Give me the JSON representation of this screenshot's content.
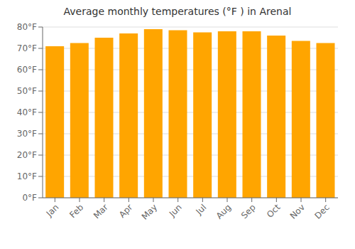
{
  "chart_data": {
    "type": "bar",
    "title": "Average monthly temperatures (°F ) in Arenal",
    "categories": [
      "Jan",
      "Feb",
      "Mar",
      "Apr",
      "May",
      "Jun",
      "Jul",
      "Aug",
      "Sep",
      "Oct",
      "Nov",
      "Dec"
    ],
    "values": [
      71,
      72.5,
      75,
      77,
      79,
      78.5,
      77.5,
      78,
      78,
      76,
      73.5,
      72.5
    ],
    "color": "#FFA500",
    "ylim": [
      0,
      80
    ],
    "yticks": [
      {
        "value": 0,
        "label": "0°F"
      },
      {
        "value": 10,
        "label": "10°F"
      },
      {
        "value": 20,
        "label": "20°F"
      },
      {
        "value": 30,
        "label": "30°F"
      },
      {
        "value": 40,
        "label": "40°F"
      },
      {
        "value": 50,
        "label": "50°F"
      },
      {
        "value": 60,
        "label": "60°F"
      },
      {
        "value": 70,
        "label": "70°F"
      },
      {
        "value": 80,
        "label": "80°F"
      }
    ],
    "grid": true
  }
}
